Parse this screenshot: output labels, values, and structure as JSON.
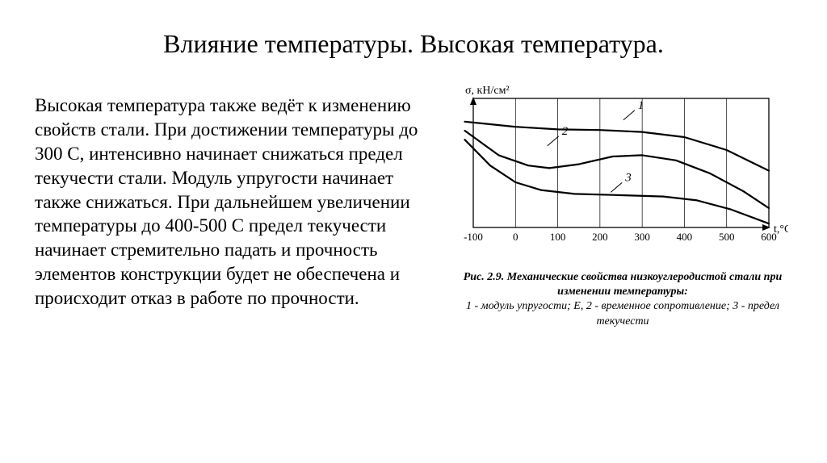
{
  "title": "Влияние температуры. Высокая температура.",
  "body_text": "Высокая температура также ведёт к изменению свойств стали. При достижении температуры до 300 С, интенсивно начинает снижаться предел текучести стали. Модуль упругости начинает также снижаться.\nПри дальнейшем увеличении температуры до 400-500 С предел текучести начинает стремительно падать и прочность элементов конструкции будет не обеспечена и происходит отказ в работе по прочности.",
  "chart": {
    "type": "line",
    "y_axis_label": "σ, кН/см²",
    "x_axis_label": "t,°С",
    "xlim": [
      -100,
      600
    ],
    "x_ticks": [
      -100,
      0,
      100,
      200,
      300,
      400,
      500,
      600
    ],
    "ylim": [
      0,
      100
    ],
    "background": "#ffffff",
    "axis_color": "#000000",
    "grid_color": "#000000",
    "line_color": "#000000",
    "line_width": 2.2,
    "tick_fontsize": 13,
    "label_fontsize": 14,
    "series": [
      {
        "name": "1",
        "label_pos": {
          "x": 290,
          "y": 92
        },
        "points": [
          {
            "x": -120,
            "y": 82
          },
          {
            "x": -60,
            "y": 80
          },
          {
            "x": 0,
            "y": 78
          },
          {
            "x": 100,
            "y": 76
          },
          {
            "x": 200,
            "y": 75.5
          },
          {
            "x": 300,
            "y": 74
          },
          {
            "x": 400,
            "y": 70
          },
          {
            "x": 500,
            "y": 60
          },
          {
            "x": 600,
            "y": 44
          }
        ]
      },
      {
        "name": "2",
        "label_pos": {
          "x": 110,
          "y": 72
        },
        "points": [
          {
            "x": -120,
            "y": 75
          },
          {
            "x": -40,
            "y": 56
          },
          {
            "x": 30,
            "y": 48
          },
          {
            "x": 80,
            "y": 46
          },
          {
            "x": 150,
            "y": 49
          },
          {
            "x": 230,
            "y": 55
          },
          {
            "x": 300,
            "y": 56
          },
          {
            "x": 380,
            "y": 52
          },
          {
            "x": 460,
            "y": 42
          },
          {
            "x": 540,
            "y": 28
          },
          {
            "x": 600,
            "y": 15
          }
        ]
      },
      {
        "name": "3",
        "label_pos": {
          "x": 260,
          "y": 36
        },
        "points": [
          {
            "x": -120,
            "y": 68
          },
          {
            "x": -60,
            "y": 48
          },
          {
            "x": 0,
            "y": 35
          },
          {
            "x": 60,
            "y": 29
          },
          {
            "x": 140,
            "y": 26
          },
          {
            "x": 250,
            "y": 25
          },
          {
            "x": 350,
            "y": 24
          },
          {
            "x": 430,
            "y": 21
          },
          {
            "x": 510,
            "y": 14
          },
          {
            "x": 600,
            "y": 3
          }
        ]
      }
    ]
  },
  "caption": {
    "fig_label": "Рис. 2.9. Механические свойства низкоуглеродистой стали при изменении температуры:",
    "legend": "1 - модуль упругости;  E, 2 - временное сопротивление;\n3 - предел текучести"
  }
}
